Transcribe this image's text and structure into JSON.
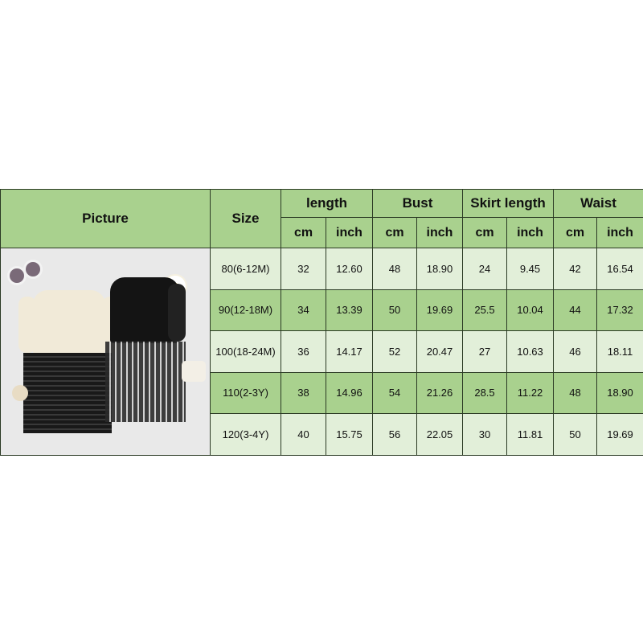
{
  "table": {
    "headers": {
      "picture": "Picture",
      "size": "Size",
      "groups": [
        "length",
        "Bust",
        "Skirt length",
        "Waist"
      ],
      "units": [
        "cm",
        "inch",
        "cm",
        "inch",
        "cm",
        "inch",
        "cm",
        "inch"
      ]
    },
    "rows": [
      [
        "80(6-12M)",
        "32",
        "12.60",
        "48",
        "18.90",
        "24",
        "9.45",
        "42",
        "16.54"
      ],
      [
        "90(12-18M)",
        "34",
        "13.39",
        "50",
        "19.69",
        "25.5",
        "10.04",
        "44",
        "17.32"
      ],
      [
        "100(18-24M)",
        "36",
        "14.17",
        "52",
        "20.47",
        "27",
        "10.63",
        "46",
        "18.11"
      ],
      [
        "110(2-3Y)",
        "38",
        "14.96",
        "54",
        "21.26",
        "28.5",
        "11.22",
        "48",
        "18.90"
      ],
      [
        "120(3-4Y)",
        "40",
        "15.75",
        "56",
        "22.05",
        "30",
        "11.81",
        "50",
        "19.69"
      ]
    ]
  },
  "colors": {
    "header": "#a9d18e",
    "row_light": "#e2efd9",
    "row_dark": "#a9d18e",
    "border": "#2b3a24"
  }
}
